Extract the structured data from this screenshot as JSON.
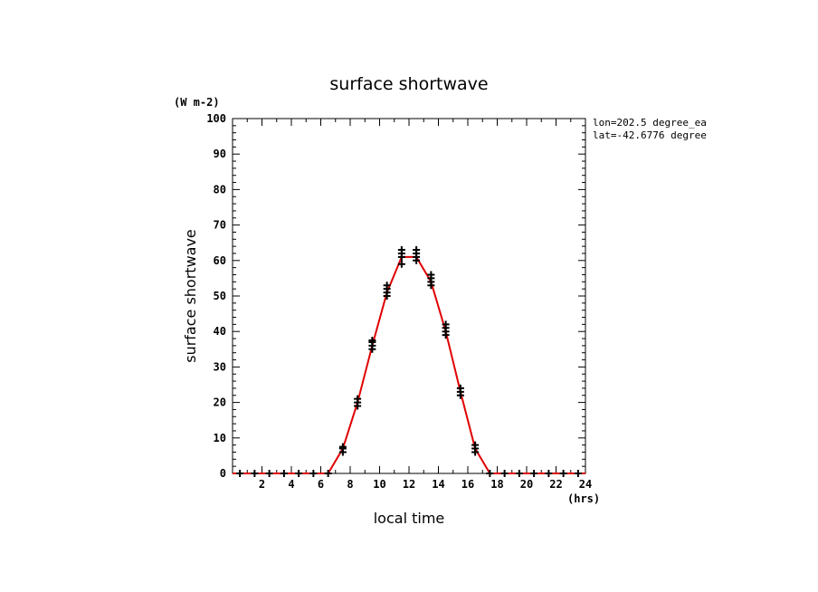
{
  "chart_data": {
    "type": "scatter",
    "title": "surface shortwave",
    "ylabel": "surface shortwave",
    "xlabel": "local time",
    "y_units": "(W m-2)",
    "x_units": "(hrs)",
    "info_lines": [
      "lon=202.5 degree_ea",
      "lat=-42.6776 degree"
    ],
    "xlim": [
      0,
      24
    ],
    "ylim": [
      0,
      100
    ],
    "x_ticks": [
      2,
      4,
      6,
      8,
      10,
      12,
      14,
      16,
      18,
      20,
      22,
      24
    ],
    "y_ticks": [
      0,
      10,
      20,
      30,
      40,
      50,
      60,
      70,
      80,
      90,
      100
    ],
    "grid": false,
    "colors": {
      "line": "#e00000",
      "markers": "#000000"
    },
    "series": [
      {
        "type": "line",
        "x": [
          0,
          1,
          2,
          3,
          4,
          5,
          6,
          6.5,
          7.5,
          8.5,
          9.5,
          10.5,
          11.5,
          12.5,
          13.5,
          14.5,
          15.5,
          16.5,
          17.5,
          18,
          19,
          20,
          21,
          22,
          23,
          24
        ],
        "y": [
          0,
          0,
          0,
          0,
          0,
          0,
          0,
          0,
          7,
          20,
          36,
          51,
          61,
          61,
          54,
          40,
          23,
          7,
          0,
          0,
          0,
          0,
          0,
          0,
          0,
          0
        ]
      },
      {
        "type": "scatter",
        "marker": "plus",
        "x": [
          0.5,
          1.5,
          2.5,
          3.5,
          4.5,
          5.5,
          6.5,
          7.5,
          7.5,
          7.5,
          8.5,
          8.5,
          8.5,
          9.5,
          9.5,
          9.5,
          9.5,
          10.5,
          10.5,
          10.5,
          10.5,
          11.5,
          11.5,
          11.5,
          11.5,
          12.5,
          12.5,
          12.5,
          12.5,
          13.5,
          13.5,
          13.5,
          13.5,
          14.5,
          14.5,
          14.5,
          14.5,
          15.5,
          15.5,
          15.5,
          16.5,
          16.5,
          16.5,
          17.5,
          18.5,
          19.5,
          20.5,
          21.5,
          22.5,
          23.5
        ],
        "y": [
          0,
          0,
          0,
          0,
          0,
          0,
          0,
          6,
          7,
          7.5,
          19,
          20,
          21,
          35,
          36,
          37,
          37.5,
          50,
          51,
          52,
          53,
          59,
          61,
          62,
          63,
          60,
          61,
          62,
          63,
          53,
          54,
          55,
          56,
          39,
          40,
          41,
          42,
          22,
          23,
          24,
          6,
          7,
          8,
          0,
          0,
          0,
          0,
          0,
          0,
          0
        ]
      }
    ]
  }
}
